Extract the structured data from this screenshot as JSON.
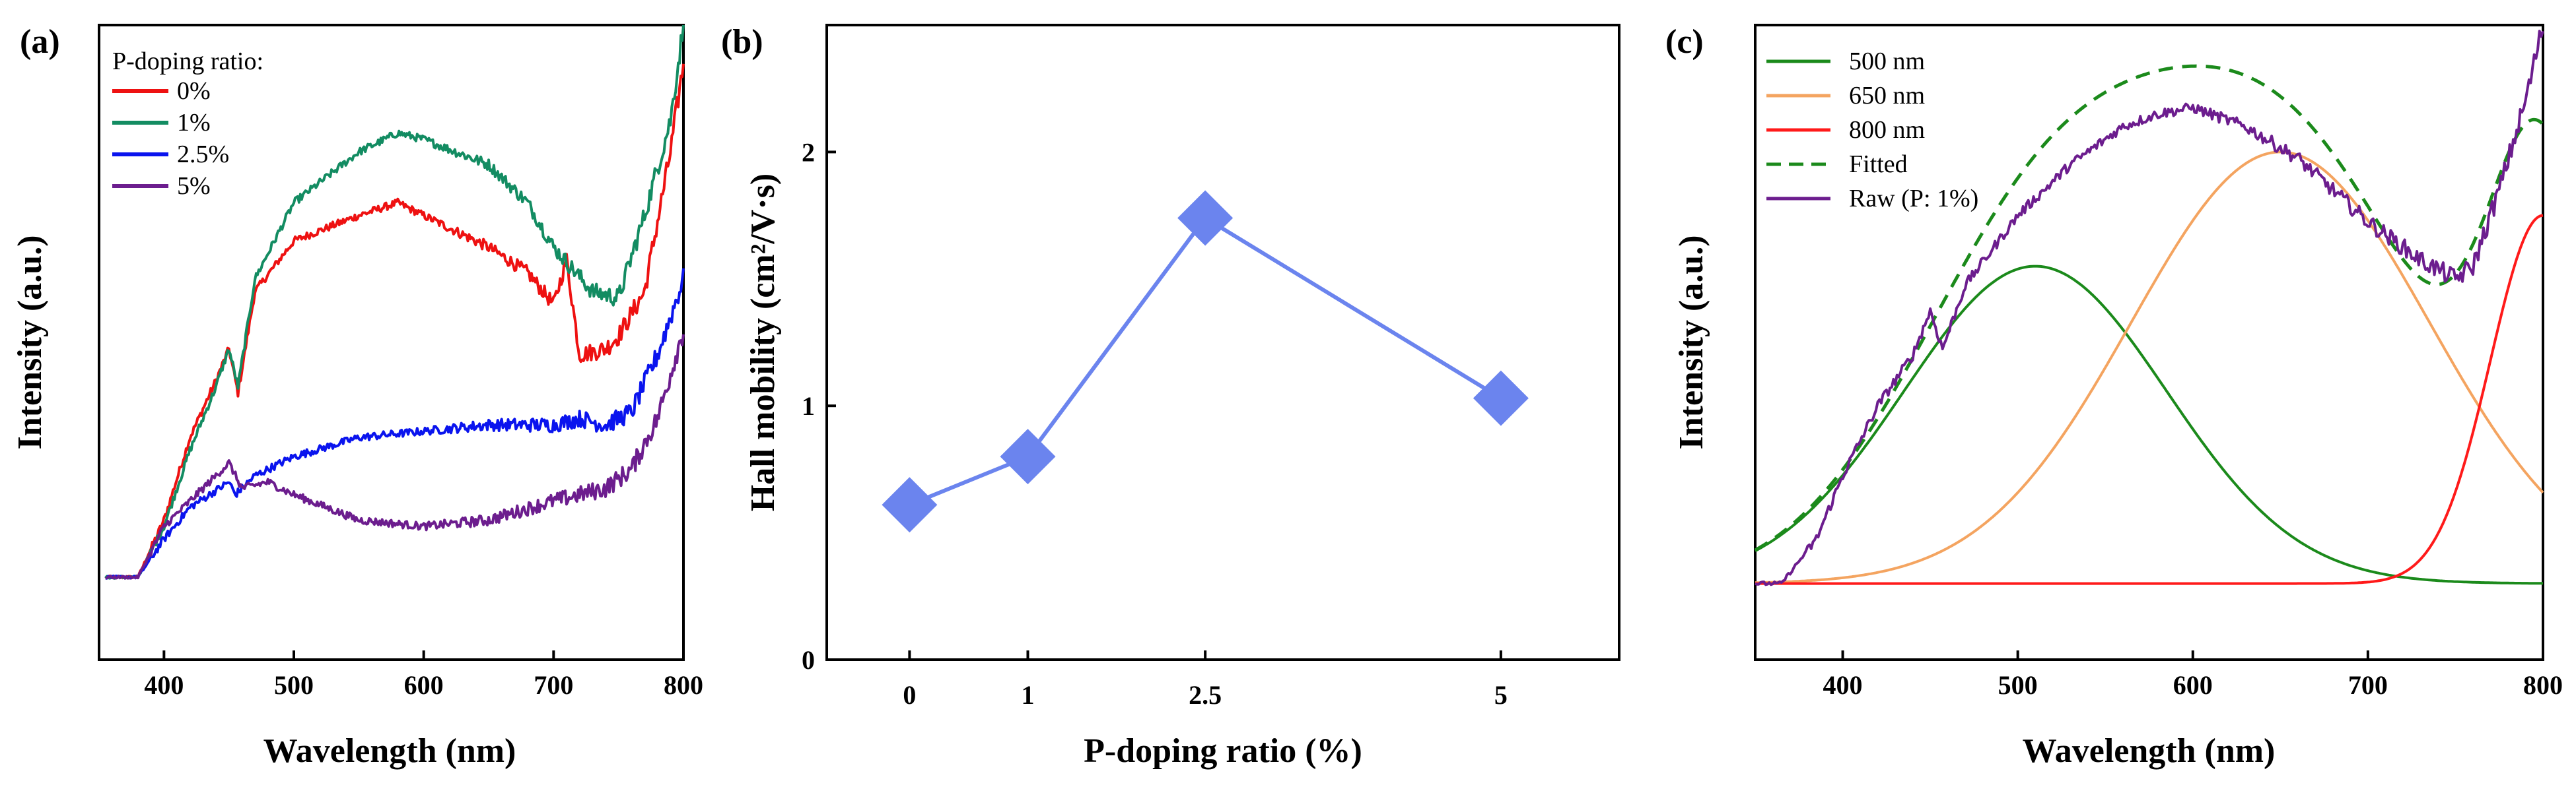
{
  "chart_data": [
    {
      "panel_label": "(a)",
      "type": "line",
      "xlabel": "Wavelength (nm)",
      "ylabel": "Intensity (a.u.)",
      "xlim": [
        350,
        800
      ],
      "ylim": [
        0,
        1
      ],
      "xticks": [
        400,
        500,
        600,
        700,
        800
      ],
      "legend_title": "P-doping ratio:",
      "legend_position": "top-left",
      "series": [
        {
          "name": "0%",
          "color": "#ee1111",
          "x": [
            355,
            380,
            400,
            420,
            440,
            450,
            457,
            470,
            500,
            550,
            580,
            600,
            650,
            680,
            700,
            710,
            720,
            740,
            750,
            770,
            790,
            800
          ],
          "y": [
            0.13,
            0.13,
            0.22,
            0.35,
            0.44,
            0.49,
            0.42,
            0.58,
            0.66,
            0.7,
            0.72,
            0.7,
            0.65,
            0.61,
            0.56,
            0.63,
            0.48,
            0.49,
            0.51,
            0.58,
            0.8,
            0.94
          ]
        },
        {
          "name": "1%",
          "color": "#138c62",
          "x": [
            355,
            380,
            400,
            420,
            440,
            450,
            457,
            470,
            500,
            550,
            580,
            600,
            650,
            680,
            700,
            730,
            750,
            770,
            790,
            800
          ],
          "y": [
            0.13,
            0.13,
            0.21,
            0.33,
            0.43,
            0.49,
            0.43,
            0.6,
            0.72,
            0.8,
            0.83,
            0.82,
            0.78,
            0.72,
            0.65,
            0.58,
            0.57,
            0.7,
            0.85,
            1.0
          ]
        },
        {
          "name": "2.5%",
          "color": "#0a14ee",
          "x": [
            355,
            380,
            400,
            420,
            450,
            455,
            470,
            500,
            550,
            600,
            650,
            700,
            720,
            740,
            760,
            780,
            800
          ],
          "y": [
            0.13,
            0.13,
            0.19,
            0.24,
            0.28,
            0.26,
            0.29,
            0.32,
            0.35,
            0.36,
            0.37,
            0.37,
            0.38,
            0.37,
            0.39,
            0.48,
            0.6
          ]
        },
        {
          "name": "5%",
          "color": "#6c1d8e",
          "x": [
            355,
            380,
            400,
            430,
            450,
            460,
            480,
            500,
            550,
            600,
            650,
            700,
            740,
            760,
            780,
            800
          ],
          "y": [
            0.13,
            0.13,
            0.21,
            0.27,
            0.31,
            0.27,
            0.28,
            0.26,
            0.22,
            0.21,
            0.22,
            0.25,
            0.27,
            0.3,
            0.38,
            0.52
          ]
        }
      ]
    },
    {
      "panel_label": "(b)",
      "type": "line",
      "xlabel": "P-doping ratio (%)",
      "ylabel": "Hall mobility (cm²/V·s)",
      "categories": [
        "0",
        "1",
        "2.5",
        "5"
      ],
      "x": [
        0,
        1,
        2.5,
        5
      ],
      "values": [
        0.61,
        0.8,
        1.74,
        1.03
      ],
      "xlim": [
        -0.7,
        6.0
      ],
      "ylim": [
        0,
        2.5
      ],
      "yticks": [
        0,
        1,
        2
      ],
      "color": "#6b84ee"
    },
    {
      "panel_label": "(c)",
      "type": "line",
      "xlabel": "Wavelength (nm)",
      "ylabel": "Intensity (a.u.)",
      "xlim": [
        350,
        800
      ],
      "ylim": [
        0,
        1
      ],
      "xticks": [
        400,
        500,
        600,
        700,
        800
      ],
      "legend_position": "top-left",
      "baseline": 0.12,
      "series": [
        {
          "name": "500 nm",
          "color": "#1b8a1b",
          "kind": "gauss",
          "center": 510,
          "amplitude": 0.5,
          "sigma": 75
        },
        {
          "name": "650 nm",
          "color": "#f4a460",
          "kind": "gauss",
          "center": 650,
          "amplitude": 0.68,
          "sigma": 85
        },
        {
          "name": "800 nm",
          "color": "#ff1a1a",
          "kind": "gauss",
          "center": 800,
          "amplitude": 0.58,
          "sigma": 30
        },
        {
          "name": "Fitted",
          "color": "#1b8a1b",
          "kind": "sum",
          "dash": true
        },
        {
          "name": "Raw (P: 1%)",
          "color": "#6c1d8e",
          "kind": "raw",
          "x": [
            350,
            365,
            385,
            400,
            420,
            440,
            450,
            457,
            470,
            500,
            530,
            560,
            580,
            600,
            630,
            660,
            700,
            730,
            750,
            760,
            775,
            790,
            800
          ],
          "y": [
            0.12,
            0.12,
            0.19,
            0.29,
            0.4,
            0.48,
            0.55,
            0.49,
            0.59,
            0.7,
            0.78,
            0.84,
            0.86,
            0.87,
            0.84,
            0.79,
            0.69,
            0.63,
            0.6,
            0.62,
            0.74,
            0.88,
            1.0
          ]
        }
      ]
    }
  ]
}
